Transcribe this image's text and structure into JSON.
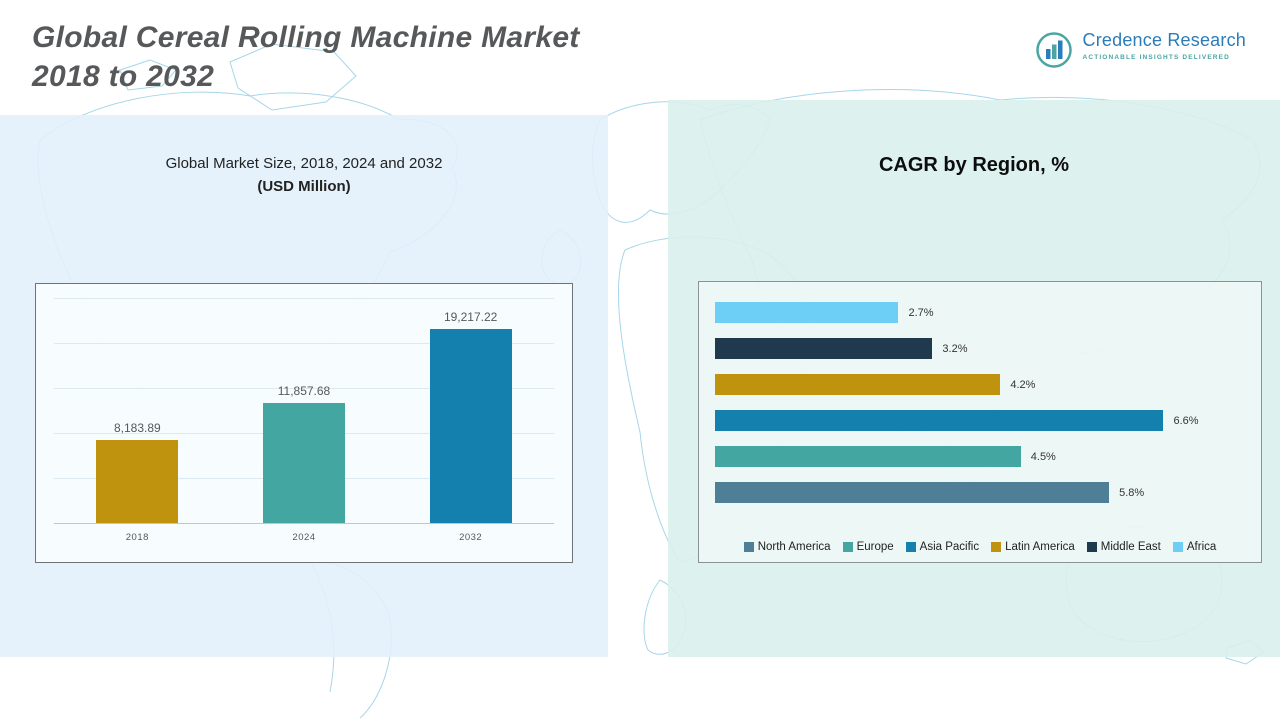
{
  "header": {
    "title_line1": "Global Cereal Rolling Machine Market",
    "title_line2": "2018 to 2032",
    "logo": {
      "name": "Credence Research",
      "tagline": "Actionable Insights Delivered"
    }
  },
  "left_panel": {
    "subtitle_line1": "Global Market Size, 2018, 2024 and 2032",
    "subtitle_line2": "(USD Million)"
  },
  "right_panel": {
    "title": "CAGR by Region, %"
  },
  "colors": {
    "gold": "#C0930F",
    "teal": "#43A6A0",
    "blue": "#1380AD",
    "light_blue": "#6DCFF6",
    "dark_navy": "#1E3A4C",
    "steel_blue": "#4E7F96",
    "logo_blue": "#2B7CB8",
    "logo_teal": "#4AA5A3"
  },
  "chart_data": [
    {
      "type": "bar",
      "title": "Global Market Size, 2018, 2024 and 2032 (USD Million)",
      "categories": [
        "2018",
        "2024",
        "2032"
      ],
      "values": [
        8183.89,
        11857.68,
        19217.22
      ],
      "labels": [
        "8,183.89",
        "11,857.68",
        "19,217.22"
      ],
      "colors": [
        "#C0930F",
        "#43A6A0",
        "#1380AD"
      ],
      "ylim": [
        0,
        20000
      ],
      "grid": true,
      "legend_position": "none"
    },
    {
      "type": "bar",
      "orientation": "horizontal",
      "title": "CAGR by Region, %",
      "categories": [
        "Africa",
        "Middle East",
        "Latin America",
        "Asia Pacific",
        "Europe",
        "North America"
      ],
      "values": [
        2.7,
        3.2,
        4.2,
        6.6,
        4.5,
        5.8
      ],
      "labels": [
        "2.7%",
        "3.2%",
        "4.2%",
        "6.6%",
        "4.5%",
        "5.8%"
      ],
      "colors": [
        "#6DCFF6",
        "#1E3A4C",
        "#C0930F",
        "#1380AD",
        "#43A6A0",
        "#4E7F96"
      ],
      "xlim": [
        0,
        7.8
      ],
      "grid": false,
      "legend_position": "bottom",
      "legend": [
        "North America",
        "Europe",
        "Asia Pacific",
        "Latin America",
        "Middle East",
        "Africa"
      ],
      "legend_colors": [
        "#4E7F96",
        "#43A6A0",
        "#1380AD",
        "#C0930F",
        "#1E3A4C",
        "#6DCFF6"
      ]
    }
  ]
}
